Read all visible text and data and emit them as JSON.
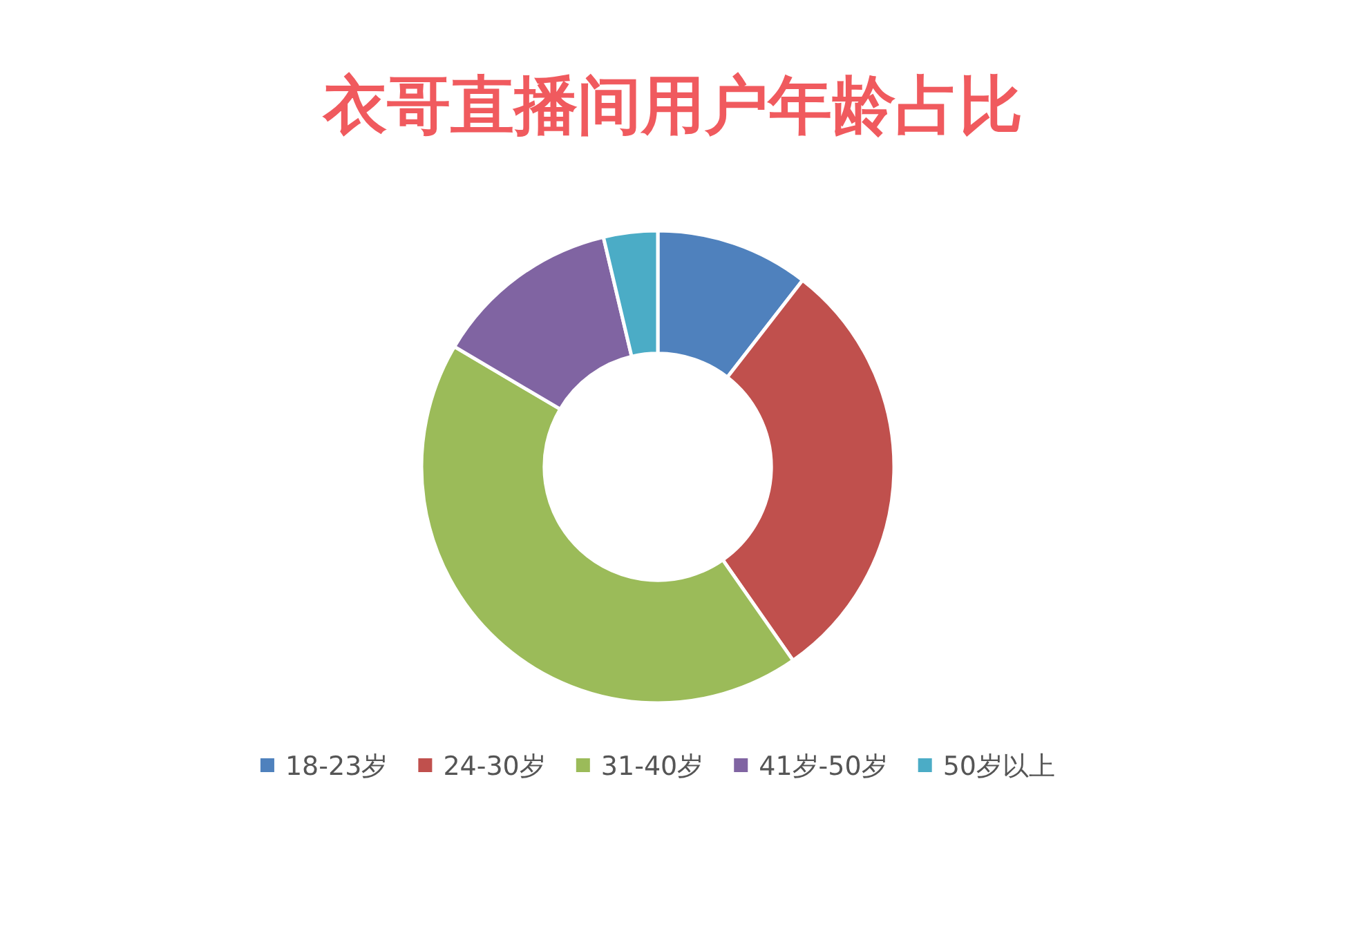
{
  "chart_data": {
    "type": "donut",
    "title": "衣哥直播间用户年龄占比",
    "categories": [
      "18-23岁",
      "24-30岁",
      "31-40岁",
      "41岁-50岁",
      "50岁以上"
    ],
    "values": [
      10.5,
      29.8,
      43.2,
      12.8,
      3.7
    ],
    "colors": [
      "#4f81bd",
      "#c0504d",
      "#9bbb59",
      "#8064a2",
      "#4bacc6"
    ],
    "legend": "bottom"
  }
}
